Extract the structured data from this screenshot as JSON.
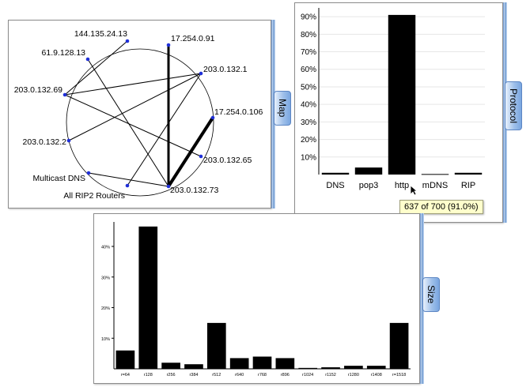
{
  "map": {
    "tab_label": "Map",
    "nodes": [
      {
        "id": "n144",
        "label": "144.135.24.13"
      },
      {
        "id": "n172a",
        "label": "17.254.0.91"
      },
      {
        "id": "n61",
        "label": "61.9.128.13"
      },
      {
        "id": "n203_1",
        "label": "203.0.132.1"
      },
      {
        "id": "n203_69",
        "label": "203.0.132.69"
      },
      {
        "id": "n172b",
        "label": "17.254.0.106"
      },
      {
        "id": "n203_2",
        "label": "203.0.132.2"
      },
      {
        "id": "n203_65",
        "label": "203.0.132.65"
      },
      {
        "id": "nmdns",
        "label": "Multicast DNS"
      },
      {
        "id": "nrip",
        "label": "All RIP2 Routers"
      },
      {
        "id": "n203_73",
        "label": "203.0.132.73"
      }
    ]
  },
  "protocol": {
    "tab_label": "Protocol",
    "tooltip": "637 of 700 (91.0%)",
    "y_ticks": [
      "90%",
      "80%",
      "70%",
      "60%",
      "50%",
      "40%",
      "30%",
      "20%",
      "10%"
    ]
  },
  "size": {
    "tab_label": "Size",
    "y_ticks": [
      "40%",
      "30%",
      "20%",
      "10%"
    ]
  },
  "chart_data": [
    {
      "type": "bar",
      "categories": [
        "DNS",
        "pop3",
        "http",
        "mDNS",
        "RIP"
      ],
      "values": [
        1.0,
        4.0,
        91.0,
        0.3,
        1.0
      ],
      "ylim": [
        0,
        95
      ],
      "grid": true
    },
    {
      "type": "bar",
      "categories": [
        "r=64",
        "r128",
        "r256",
        "r384",
        "r512",
        "r640",
        "r768",
        "r896",
        "r1024",
        "r1152",
        "r1280",
        "r1408",
        "r=1518"
      ],
      "values": [
        6.0,
        46.5,
        2.0,
        1.5,
        15.0,
        3.5,
        4.0,
        3.5,
        0.3,
        0.5,
        1.0,
        1.0,
        15.0
      ],
      "ylim": [
        0,
        48
      ],
      "grid": false
    }
  ]
}
